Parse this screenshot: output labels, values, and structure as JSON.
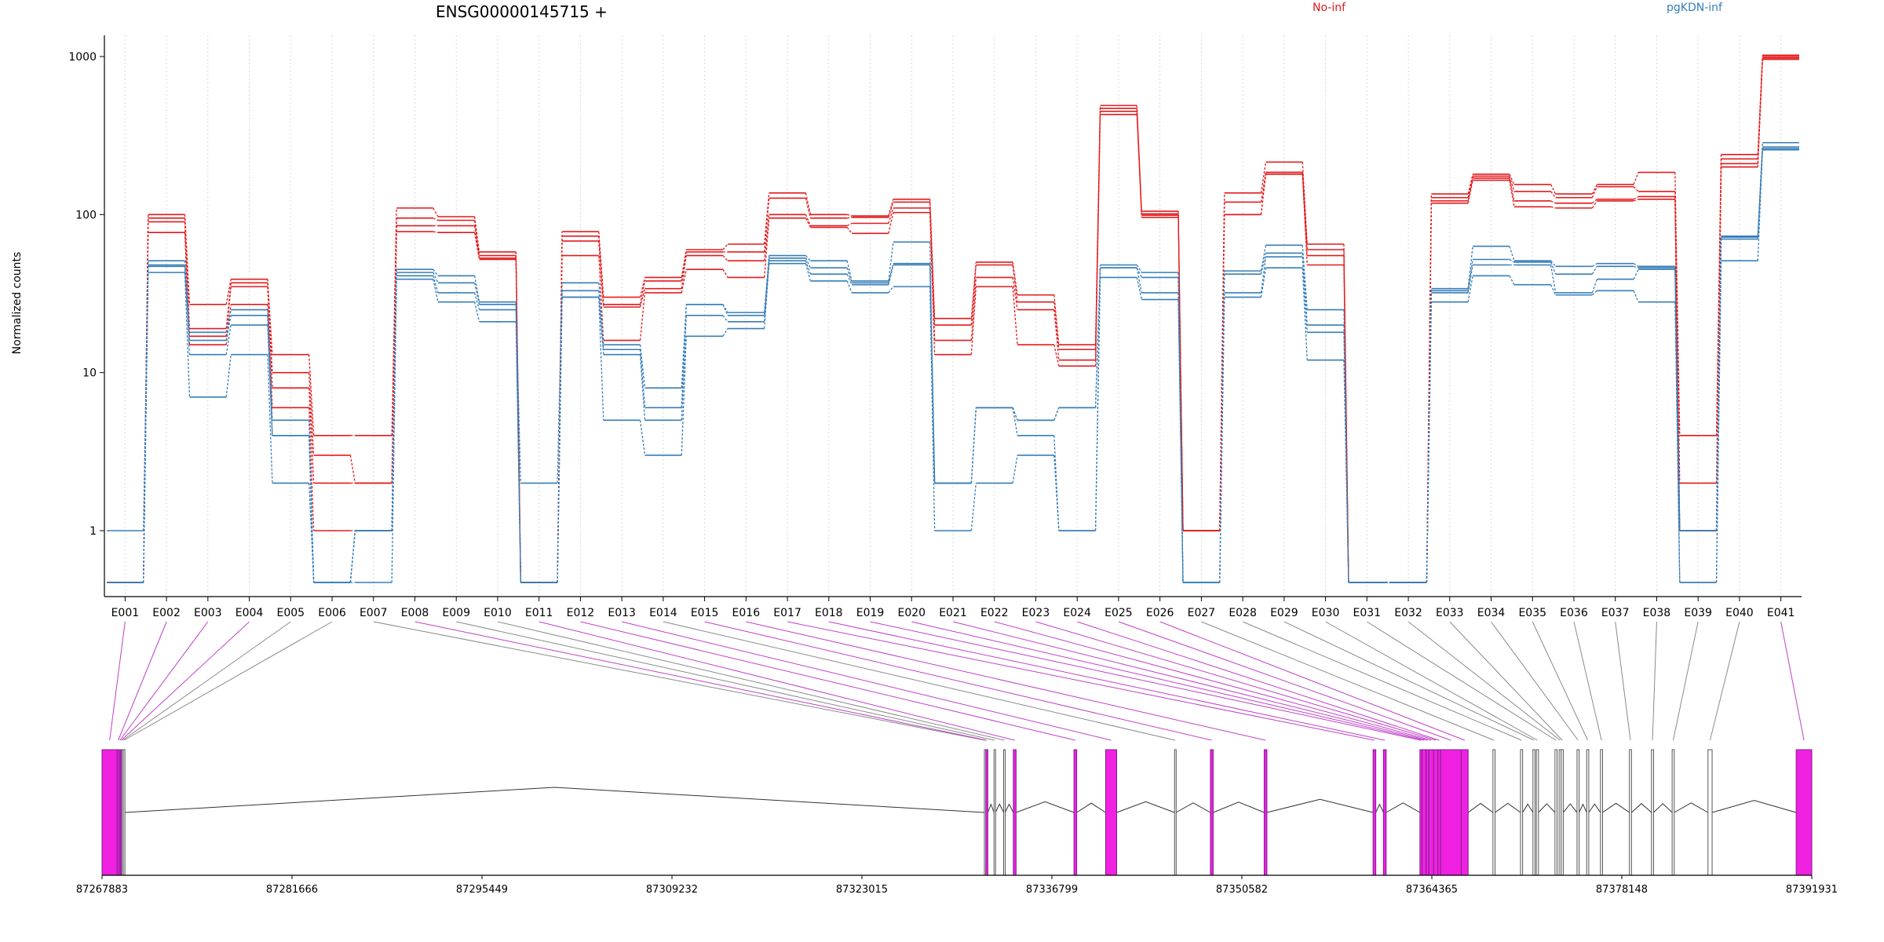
{
  "chart_data": {
    "type": "line",
    "title": "ENSG00000145715 +",
    "ylabel": "Normalized counts",
    "xlabel": "",
    "yscale": "log",
    "ylim": [
      0.5,
      1200
    ],
    "yticks": [
      "1",
      "10",
      "100",
      "1000"
    ],
    "ytick_values": [
      1,
      10,
      100,
      1000
    ],
    "grid": "vertical dotted lines at each exon",
    "legend_placement": "top-right, as text",
    "legend": [
      {
        "name": "No-inf",
        "color": "#e41a1c"
      },
      {
        "name": "pgKDN-inf",
        "color": "#377eb8"
      }
    ],
    "categories": [
      "E001",
      "E002",
      "E003",
      "E004",
      "E005",
      "E006",
      "E007",
      "E008",
      "E009",
      "E010",
      "E011",
      "E012",
      "E013",
      "E014",
      "E015",
      "E016",
      "E017",
      "E018",
      "E019",
      "E020",
      "E021",
      "E022",
      "E023",
      "E024",
      "E025",
      "E026",
      "E027",
      "E028",
      "E029",
      "E030",
      "E031",
      "E032",
      "E033",
      "E034",
      "E035",
      "E036",
      "E037",
      "E038",
      "E039",
      "E040",
      "E041"
    ],
    "zero_floor_note": "values shown at the bottom line are zero counts",
    "series": [
      {
        "group": "No-inf",
        "color": "#e41a1c",
        "values": [
          0,
          100,
          27,
          39,
          13,
          4,
          4,
          110,
          97,
          58,
          0,
          78,
          30,
          40,
          60,
          65,
          137,
          100,
          98,
          125,
          22,
          50,
          31,
          15,
          490,
          105,
          1,
          137,
          215,
          65,
          0,
          0,
          135,
          180,
          155,
          135,
          155,
          185,
          4,
          240,
          1020
        ]
      },
      {
        "group": "No-inf",
        "color": "#e41a1c",
        "values": [
          0,
          95,
          19,
          37,
          10,
          3,
          2,
          95,
          92,
          55,
          0,
          73,
          27,
          38,
          58,
          58,
          127,
          95,
          96,
          120,
          20,
          48,
          28,
          14,
          470,
          101,
          1,
          120,
          185,
          60,
          0,
          0,
          128,
          175,
          140,
          128,
          150,
          140,
          2,
          225,
          1000
        ]
      },
      {
        "group": "No-inf",
        "color": "#e41a1c",
        "values": [
          0,
          90,
          17,
          35,
          8,
          2,
          2,
          85,
          85,
          53,
          0,
          68,
          26,
          34,
          55,
          51,
          100,
          85,
          88,
          110,
          16,
          40,
          25,
          12,
          450,
          99,
          1,
          100,
          185,
          55,
          0,
          0,
          122,
          170,
          122,
          118,
          125,
          130,
          1,
          210,
          980
        ]
      },
      {
        "group": "No-inf",
        "color": "#e41a1c",
        "values": [
          0,
          77,
          15,
          27,
          6,
          1,
          1,
          78,
          77,
          52,
          0,
          55,
          16,
          32,
          45,
          40,
          95,
          83,
          76,
          103,
          13,
          35,
          15,
          11,
          430,
          96,
          1,
          100,
          180,
          48,
          0,
          0,
          118,
          165,
          112,
          110,
          122,
          125,
          1,
          200,
          960
        ]
      },
      {
        "group": "pgKDN-inf",
        "color": "#377eb8",
        "values": [
          1,
          51,
          18,
          25,
          5,
          0,
          1,
          45,
          41,
          28,
          2,
          37,
          15,
          8,
          27,
          24,
          55,
          51,
          38,
          67,
          2,
          6,
          5,
          6,
          48,
          43,
          0,
          44,
          64,
          25,
          0,
          0,
          34,
          63,
          51,
          47,
          49,
          47,
          1,
          73,
          285
        ]
      },
      {
        "group": "pgKDN-inf",
        "color": "#377eb8",
        "values": [
          0,
          48,
          16,
          23,
          4,
          0,
          1,
          43,
          37,
          27,
          0,
          33,
          14,
          6,
          27,
          23,
          53,
          46,
          37,
          49,
          2,
          6,
          5,
          6,
          46,
          40,
          0,
          42,
          57,
          20,
          0,
          0,
          33,
          52,
          50,
          42,
          47,
          46,
          1,
          72,
          268
        ]
      },
      {
        "group": "pgKDN-inf",
        "color": "#377eb8",
        "values": [
          0,
          47,
          13,
          20,
          4,
          0,
          1,
          41,
          32,
          25,
          0,
          30,
          13,
          5,
          23,
          21,
          51,
          42,
          36,
          48,
          2,
          6,
          4,
          1,
          46,
          32,
          0,
          32,
          54,
          18,
          0,
          0,
          32,
          48,
          48,
          32,
          39,
          45,
          0,
          70,
          262
        ]
      },
      {
        "group": "pgKDN-inf",
        "color": "#377eb8",
        "values": [
          0,
          43,
          7,
          13,
          2,
          0,
          0,
          39,
          28,
          21,
          0,
          30,
          5,
          3,
          17,
          19,
          49,
          38,
          32,
          35,
          1,
          2,
          3,
          1,
          40,
          29,
          0,
          30,
          46,
          12,
          0,
          0,
          28,
          41,
          36,
          31,
          33,
          28,
          0,
          51,
          257
        ]
      }
    ],
    "gene_model": {
      "coordinate_ticks": [
        "87267883",
        "87281666",
        "87295449",
        "87309232",
        "87323015",
        "87336799",
        "87350582",
        "87364365",
        "87378148",
        "87391931"
      ],
      "coordinate_tick_values": [
        87267883,
        87281666,
        87295449,
        87309232,
        87323015,
        87336799,
        87350582,
        87364365,
        87378148,
        87391931
      ],
      "highlight_color": "#f021e0",
      "exons": [
        {
          "id": "E001",
          "start": 87267883,
          "end": 87268983,
          "highlighted": true
        },
        {
          "id": "E002",
          "start": 87268983,
          "end": 87269130,
          "highlighted": true
        },
        {
          "id": "E003",
          "start": 87269130,
          "end": 87269230,
          "highlighted": true
        },
        {
          "id": "E004",
          "start": 87269230,
          "end": 87269330,
          "highlighted": true
        },
        {
          "id": "E005",
          "start": 87269330,
          "end": 87269430,
          "highlighted": false
        },
        {
          "id": "E006",
          "start": 87269430,
          "end": 87269530,
          "highlighted": false
        },
        {
          "id": "E007",
          "start": 87331900,
          "end": 87332000,
          "highlighted": false
        },
        {
          "id": "E008",
          "start": 87332000,
          "end": 87332150,
          "highlighted": true
        },
        {
          "id": "E009",
          "start": 87332600,
          "end": 87332700,
          "highlighted": false
        },
        {
          "id": "E010",
          "start": 87333300,
          "end": 87333400,
          "highlighted": false
        },
        {
          "id": "E011",
          "start": 87334000,
          "end": 87334200,
          "highlighted": true
        },
        {
          "id": "E012",
          "start": 87338400,
          "end": 87338600,
          "highlighted": true
        },
        {
          "id": "E013",
          "start": 87340700,
          "end": 87341500,
          "highlighted": true
        },
        {
          "id": "E014",
          "start": 87345700,
          "end": 87345800,
          "highlighted": false
        },
        {
          "id": "E015",
          "start": 87348300,
          "end": 87348500,
          "highlighted": true
        },
        {
          "id": "E016",
          "start": 87352200,
          "end": 87352400,
          "highlighted": true
        },
        {
          "id": "E017",
          "start": 87360100,
          "end": 87360300,
          "highlighted": true
        },
        {
          "id": "E018",
          "start": 87360850,
          "end": 87361050,
          "highlighted": true
        },
        {
          "id": "E019",
          "start": 87363500,
          "end": 87363650,
          "highlighted": true
        },
        {
          "id": "E020",
          "start": 87363650,
          "end": 87363950,
          "highlighted": true
        },
        {
          "id": "E021",
          "start": 87363950,
          "end": 87364150,
          "highlighted": true
        },
        {
          "id": "E022",
          "start": 87364150,
          "end": 87364500,
          "highlighted": true
        },
        {
          "id": "E023",
          "start": 87364500,
          "end": 87364800,
          "highlighted": true
        },
        {
          "id": "E024",
          "start": 87364800,
          "end": 87365000,
          "highlighted": true
        },
        {
          "id": "E025",
          "start": 87365000,
          "end": 87366500,
          "highlighted": true
        },
        {
          "id": "E026",
          "start": 87366500,
          "end": 87367000,
          "highlighted": true
        },
        {
          "id": "E027",
          "start": 87368800,
          "end": 87368950,
          "highlighted": false
        },
        {
          "id": "E028",
          "start": 87370800,
          "end": 87370950,
          "highlighted": false
        },
        {
          "id": "E029",
          "start": 87371700,
          "end": 87371850,
          "highlighted": false
        },
        {
          "id": "E030",
          "start": 87371950,
          "end": 87372100,
          "highlighted": false
        },
        {
          "id": "E031",
          "start": 87373300,
          "end": 87373450,
          "highlighted": false
        },
        {
          "id": "E032",
          "start": 87373600,
          "end": 87373750,
          "highlighted": false
        },
        {
          "id": "E033",
          "start": 87373750,
          "end": 87373900,
          "highlighted": false
        },
        {
          "id": "E034",
          "start": 87374900,
          "end": 87375050,
          "highlighted": false
        },
        {
          "id": "E035",
          "start": 87375600,
          "end": 87375750,
          "highlighted": false
        },
        {
          "id": "E036",
          "start": 87376600,
          "end": 87376750,
          "highlighted": false
        },
        {
          "id": "E037",
          "start": 87378700,
          "end": 87378850,
          "highlighted": false
        },
        {
          "id": "E038",
          "start": 87380300,
          "end": 87380450,
          "highlighted": false
        },
        {
          "id": "E039",
          "start": 87381800,
          "end": 87381950,
          "highlighted": false
        },
        {
          "id": "E040",
          "start": 87384400,
          "end": 87384700,
          "highlighted": false
        },
        {
          "id": "E041",
          "start": 87390800,
          "end": 87391931,
          "highlighted": true
        }
      ]
    }
  }
}
